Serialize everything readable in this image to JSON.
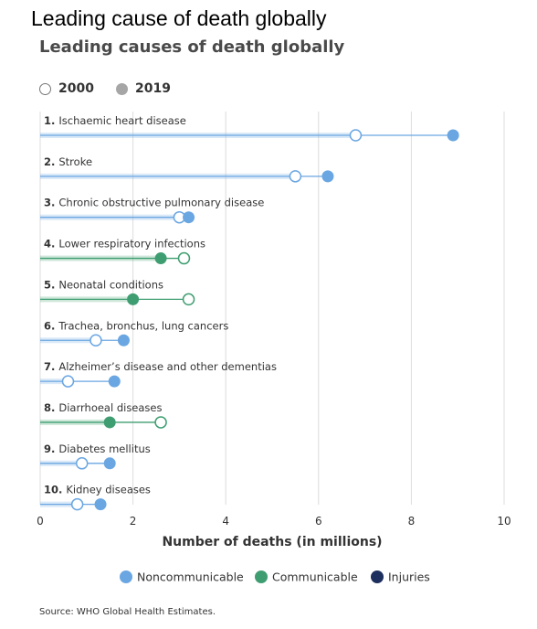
{
  "page_title": "Leading cause of death globally",
  "source": "Source: WHO Global Health Estimates.",
  "colors": {
    "Noncommunicable": "#6aa6e2",
    "Communicable": "#3f9e71",
    "Injuries": "#1d2f5e",
    "grid": "#dcdcdc",
    "axis_text": "#333333"
  },
  "chart_data": {
    "type": "dumbbell",
    "title": "Leading causes of death globally",
    "xlabel": "Number of deaths (in millions)",
    "xlim": [
      0,
      10
    ],
    "xticks": [
      "0",
      "2",
      "4",
      "6",
      "8",
      "10"
    ],
    "grid": true,
    "year_legend": [
      {
        "label": "2000",
        "marker": "open"
      },
      {
        "label": "2019",
        "marker": "filled"
      }
    ],
    "category_legend": [
      "Noncommunicable",
      "Communicable",
      "Injuries"
    ],
    "legend_position": "bottom",
    "rows": [
      {
        "rank": "1.",
        "label": "Ischaemic heart disease",
        "group": "Noncommunicable",
        "y2000": 6.8,
        "y2019": 8.9
      },
      {
        "rank": "2.",
        "label": "Stroke",
        "group": "Noncommunicable",
        "y2000": 5.5,
        "y2019": 6.2
      },
      {
        "rank": "3.",
        "label": "Chronic obstructive pulmonary disease",
        "group": "Noncommunicable",
        "y2000": 3.0,
        "y2019": 3.2
      },
      {
        "rank": "4.",
        "label": "Lower respiratory infections",
        "group": "Communicable",
        "y2000": 3.1,
        "y2019": 2.6
      },
      {
        "rank": "5.",
        "label": "Neonatal conditions",
        "group": "Communicable",
        "y2000": 3.2,
        "y2019": 2.0
      },
      {
        "rank": "6.",
        "label": "Trachea, bronchus, lung cancers",
        "group": "Noncommunicable",
        "y2000": 1.2,
        "y2019": 1.8
      },
      {
        "rank": "7.",
        "label": "Alzheimer’s disease and other dementias",
        "group": "Noncommunicable",
        "y2000": 0.6,
        "y2019": 1.6
      },
      {
        "rank": "8.",
        "label": "Diarrhoeal diseases",
        "group": "Communicable",
        "y2000": 2.6,
        "y2019": 1.5
      },
      {
        "rank": "9.",
        "label": "Diabetes mellitus",
        "group": "Noncommunicable",
        "y2000": 0.9,
        "y2019": 1.5
      },
      {
        "rank": "10.",
        "label": "Kidney diseases",
        "group": "Noncommunicable",
        "y2000": 0.8,
        "y2019": 1.3
      }
    ]
  }
}
